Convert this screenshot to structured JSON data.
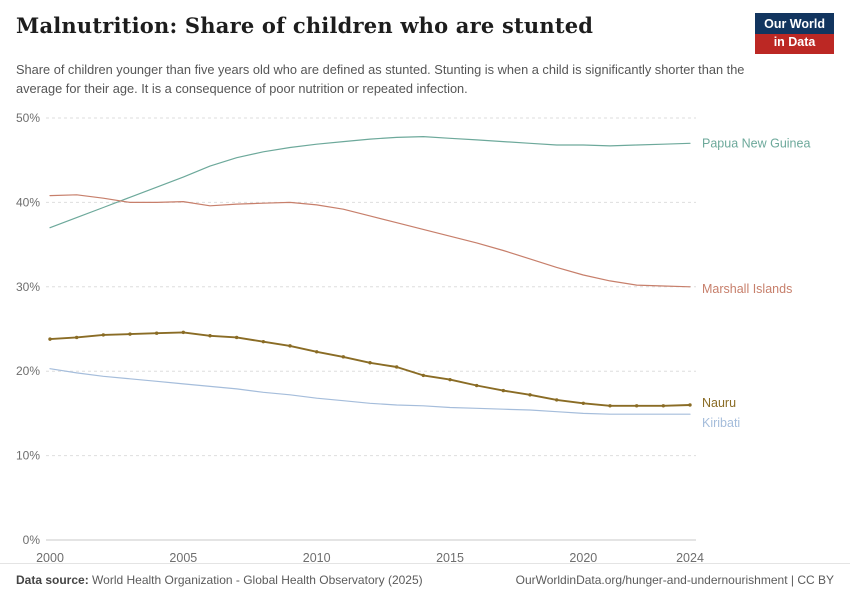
{
  "header": {
    "title": "Malnutrition: Share of children who are stunted",
    "subtitle": "Share of children younger than five years old who are defined as stunted. Stunting is when a child is significantly shorter than the average for their age. It is a consequence of poor nutrition or repeated infection.",
    "logo": {
      "line1": "Our World",
      "line2": "in Data",
      "bg_color": "#12355f",
      "accent_color": "#bc2824"
    }
  },
  "chart_data": {
    "type": "line",
    "title": "Malnutrition: Share of children who are stunted",
    "xlabel": "",
    "ylabel": "",
    "ylim": [
      0,
      50
    ],
    "yticks": [
      0,
      10,
      20,
      30,
      40,
      50
    ],
    "ytick_format": "{v}%",
    "xticks": [
      2000,
      2005,
      2010,
      2015,
      2020,
      2024
    ],
    "grid": "horizontal-dashed",
    "legend_position": "right-end-labels",
    "x": [
      2000,
      2001,
      2002,
      2003,
      2004,
      2005,
      2006,
      2007,
      2008,
      2009,
      2010,
      2011,
      2012,
      2013,
      2014,
      2015,
      2016,
      2017,
      2018,
      2019,
      2020,
      2021,
      2022,
      2023,
      2024
    ],
    "series": [
      {
        "name": "Papua New Guinea",
        "color": "#6da99b",
        "markers": false,
        "label_dy": 0,
        "values": [
          37.0,
          38.2,
          39.4,
          40.6,
          41.8,
          43.0,
          44.3,
          45.3,
          46.0,
          46.5,
          46.9,
          47.2,
          47.5,
          47.7,
          47.8,
          47.6,
          47.4,
          47.2,
          47.0,
          46.8,
          46.8,
          46.7,
          46.8,
          46.9,
          47.0
        ]
      },
      {
        "name": "Marshall Islands",
        "color": "#c77f6b",
        "markers": false,
        "label_dy": 2,
        "values": [
          40.8,
          40.9,
          40.5,
          40.0,
          40.0,
          40.1,
          39.6,
          39.8,
          39.9,
          40.0,
          39.7,
          39.2,
          38.4,
          37.6,
          36.8,
          36.0,
          35.2,
          34.3,
          33.3,
          32.3,
          31.4,
          30.7,
          30.2,
          30.1,
          30.0
        ]
      },
      {
        "name": "Nauru",
        "color": "#8a6c25",
        "markers": true,
        "label_dy": -2,
        "values": [
          23.8,
          24.0,
          24.3,
          24.4,
          24.5,
          24.6,
          24.2,
          24.0,
          23.5,
          23.0,
          22.3,
          21.7,
          21.0,
          20.5,
          19.5,
          19.0,
          18.3,
          17.7,
          17.2,
          16.6,
          16.2,
          15.9,
          15.9,
          15.9,
          16.0
        ]
      },
      {
        "name": "Kiribati",
        "color": "#a5bddb",
        "markers": false,
        "label_dy": 9,
        "values": [
          20.3,
          19.8,
          19.4,
          19.1,
          18.8,
          18.5,
          18.2,
          17.9,
          17.5,
          17.2,
          16.8,
          16.5,
          16.2,
          16.0,
          15.9,
          15.7,
          15.6,
          15.5,
          15.4,
          15.2,
          15.0,
          14.9,
          14.9,
          14.9,
          14.9
        ]
      }
    ]
  },
  "footer": {
    "source_label": "Data source:",
    "source_text": " World Health Organization - Global Health Observatory (2025)",
    "right_text": "OurWorldinData.org/hunger-and-undernourishment | CC BY"
  }
}
